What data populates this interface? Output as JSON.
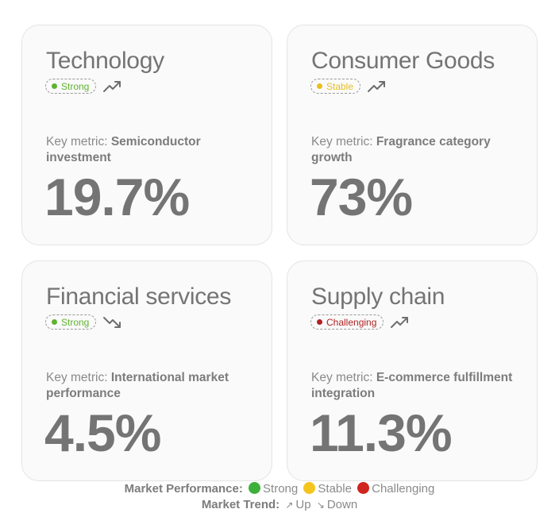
{
  "colors": {
    "strong": "#5fb32f",
    "stable": "#e8bf1c",
    "challenging": "#b02222",
    "legend_green": "#3db03a",
    "legend_yellow": "#f4c51e",
    "legend_red": "#d0241e"
  },
  "cards": [
    {
      "title": "Technology",
      "status": "Strong",
      "status_level": "strong",
      "trend_icon": "trend-up-icon",
      "metric_prefix": "Key metric: ",
      "metric_name": "Semiconductor investment",
      "value": "19.7%"
    },
    {
      "title": "Consumer Goods",
      "status": "Stable",
      "status_level": "stable",
      "trend_icon": "trend-up-icon",
      "metric_prefix": "Key metric: ",
      "metric_name": "Fragrance category growth",
      "value": "73%"
    },
    {
      "title": "Financial services",
      "status": "Strong",
      "status_level": "strong",
      "trend_icon": "trend-down-icon",
      "metric_prefix": "Key metric: ",
      "metric_name": "International market performance",
      "value": "4.5%"
    },
    {
      "title": "Supply chain",
      "status": "Challenging",
      "status_level": "challenging",
      "trend_icon": "trend-up-icon",
      "metric_prefix": "Key metric: ",
      "metric_name": "E-commerce fulfillment integration",
      "value": "11.3%"
    }
  ],
  "legend": {
    "performance_label": "Market Performance:",
    "strong": "Strong",
    "stable": "Stable",
    "challenging": "Challenging",
    "trend_label": "Market Trend:",
    "up_arrow": "↗",
    "up": "Up",
    "down_arrow": "↘",
    "down": "Down"
  }
}
